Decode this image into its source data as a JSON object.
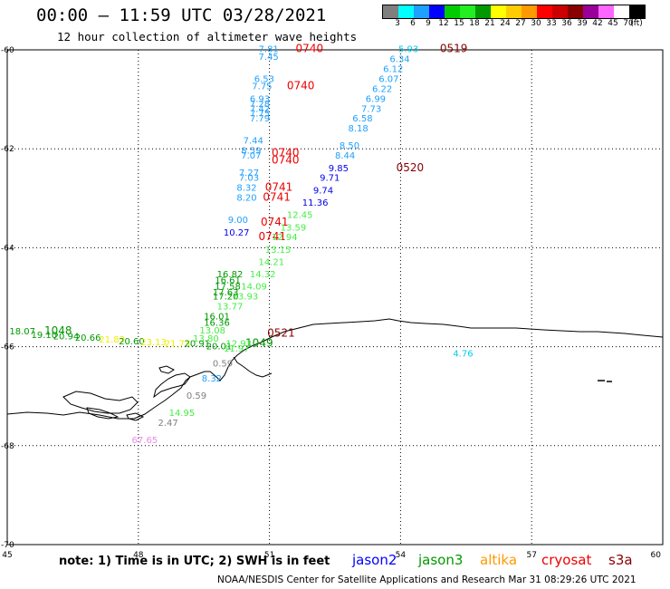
{
  "header": {
    "title": "00:00 – 11:59 UTC 03/28/2021",
    "subtitle": "12 hour collection of altimeter wave heights"
  },
  "colorbar": {
    "colors": [
      "#7f7f7f",
      "#00ffff",
      "#1ea0ff",
      "#0000ff",
      "#00cc00",
      "#22ee22",
      "#009900",
      "#ffff00",
      "#ffcc00",
      "#ff9900",
      "#ff0000",
      "#cc0000",
      "#880000",
      "#990099",
      "#ff66ff",
      "#ffffff",
      "#000000"
    ],
    "labels": [
      "3",
      "6",
      "9",
      "12",
      "15",
      "18",
      "21",
      "24",
      "27",
      "30",
      "33",
      "36",
      "39",
      "42",
      "45",
      "70",
      "(ft)"
    ]
  },
  "axes": {
    "lon_ticks": [
      "45",
      "48",
      "51",
      "54",
      "57",
      "60"
    ],
    "lat_ticks": [
      "-60",
      "-62",
      "-64",
      "-66",
      "-68",
      "-70"
    ]
  },
  "times": [
    {
      "text": "0740",
      "color": "#ee0000",
      "lon": 51.6,
      "lat": -60.05
    },
    {
      "text": "0740",
      "color": "#ee0000",
      "lon": 51.4,
      "lat": -60.8
    },
    {
      "text": "0519",
      "color": "#880000",
      "lon": 54.9,
      "lat": -60.05
    },
    {
      "text": "0740",
      "color": "#ee0000",
      "lon": 51.05,
      "lat": -62.15
    },
    {
      "text": "0740",
      "color": "#ee0000",
      "lon": 51.05,
      "lat": -62.3
    },
    {
      "text": "0520",
      "color": "#880000",
      "lon": 53.9,
      "lat": -62.45
    },
    {
      "text": "0741",
      "color": "#ee0000",
      "lon": 50.9,
      "lat": -62.85
    },
    {
      "text": "0741",
      "color": "#ee0000",
      "lon": 50.85,
      "lat": -63.05
    },
    {
      "text": "0741",
      "color": "#ee0000",
      "lon": 50.8,
      "lat": -63.55
    },
    {
      "text": "0741",
      "color": "#ee0000",
      "lon": 50.75,
      "lat": -63.85
    },
    {
      "text": "1048",
      "color": "#009900",
      "lon": 45.85,
      "lat": -65.75
    },
    {
      "text": "0521",
      "color": "#880000",
      "lon": 50.95,
      "lat": -65.8
    },
    {
      "text": "1049",
      "color": "#009900",
      "lon": 50.45,
      "lat": -66.0
    }
  ],
  "heights": [
    {
      "text": "7.81",
      "color": "#1ea0ff",
      "lon": 50.75,
      "lat": -60.05
    },
    {
      "text": "7.45",
      "color": "#1ea0ff",
      "lon": 50.75,
      "lat": -60.2
    },
    {
      "text": "5.93",
      "color": "#00ccee",
      "lon": 53.95,
      "lat": -60.05
    },
    {
      "text": "6.34",
      "color": "#1ea0ff",
      "lon": 53.75,
      "lat": -60.25
    },
    {
      "text": "6.12",
      "color": "#1ea0ff",
      "lon": 53.6,
      "lat": -60.45
    },
    {
      "text": "6.07",
      "color": "#1ea0ff",
      "lon": 53.5,
      "lat": -60.65
    },
    {
      "text": "6.53",
      "color": "#1ea0ff",
      "lon": 50.65,
      "lat": -60.65
    },
    {
      "text": "7.75",
      "color": "#1ea0ff",
      "lon": 50.6,
      "lat": -60.8
    },
    {
      "text": "6.22",
      "color": "#1ea0ff",
      "lon": 53.35,
      "lat": -60.85
    },
    {
      "text": "6.99",
      "color": "#1ea0ff",
      "lon": 53.2,
      "lat": -61.05
    },
    {
      "text": "6.93",
      "color": "#1ea0ff",
      "lon": 50.55,
      "lat": -61.05
    },
    {
      "text": "7.28",
      "color": "#1ea0ff",
      "lon": 50.55,
      "lat": -61.15
    },
    {
      "text": "7.42",
      "color": "#1ea0ff",
      "lon": 50.55,
      "lat": -61.25
    },
    {
      "text": "7.75",
      "color": "#1ea0ff",
      "lon": 50.55,
      "lat": -61.35
    },
    {
      "text": "7.73",
      "color": "#1ea0ff",
      "lon": 53.1,
      "lat": -61.25
    },
    {
      "text": "7.79",
      "color": "#1ea0ff",
      "lon": 50.55,
      "lat": -61.45
    },
    {
      "text": "6.58",
      "color": "#1ea0ff",
      "lon": 52.9,
      "lat": -61.45
    },
    {
      "text": "8.18",
      "color": "#1ea0ff",
      "lon": 52.8,
      "lat": -61.65
    },
    {
      "text": "7.44",
      "color": "#1ea0ff",
      "lon": 50.4,
      "lat": -61.9
    },
    {
      "text": "8.50",
      "color": "#1ea0ff",
      "lon": 52.6,
      "lat": -62.0
    },
    {
      "text": "8.59",
      "color": "#1ea0ff",
      "lon": 50.35,
      "lat": -62.1
    },
    {
      "text": "7.07",
      "color": "#1ea0ff",
      "lon": 50.35,
      "lat": -62.2
    },
    {
      "text": "8.44",
      "color": "#1ea0ff",
      "lon": 52.5,
      "lat": -62.2
    },
    {
      "text": "9.85",
      "color": "#0000ee",
      "lon": 52.35,
      "lat": -62.45
    },
    {
      "text": "7.27",
      "color": "#1ea0ff",
      "lon": 50.3,
      "lat": -62.55
    },
    {
      "text": "7.03",
      "color": "#1ea0ff",
      "lon": 50.3,
      "lat": -62.65
    },
    {
      "text": "9.71",
      "color": "#0000ee",
      "lon": 52.15,
      "lat": -62.65
    },
    {
      "text": "8.32",
      "color": "#1ea0ff",
      "lon": 50.25,
      "lat": -62.85
    },
    {
      "text": "9.74",
      "color": "#0000ee",
      "lon": 52.0,
      "lat": -62.9
    },
    {
      "text": "8.20",
      "color": "#1ea0ff",
      "lon": 50.25,
      "lat": -63.05
    },
    {
      "text": "11.36",
      "color": "#0000ee",
      "lon": 51.75,
      "lat": -63.15
    },
    {
      "text": "12.45",
      "color": "#44ee44",
      "lon": 51.4,
      "lat": -63.4
    },
    {
      "text": "9.00",
      "color": "#1ea0ff",
      "lon": 50.05,
      "lat": -63.5
    },
    {
      "text": "13.59",
      "color": "#44ee44",
      "lon": 51.25,
      "lat": -63.65
    },
    {
      "text": "10.27",
      "color": "#0000ee",
      "lon": 49.95,
      "lat": -63.75
    },
    {
      "text": "12.94",
      "color": "#44ee44",
      "lon": 51.05,
      "lat": -63.85
    },
    {
      "text": "13.15",
      "color": "#44ee44",
      "lon": 50.9,
      "lat": -64.1
    },
    {
      "text": "14.21",
      "color": "#44ee44",
      "lon": 50.75,
      "lat": -64.35
    },
    {
      "text": "14.32",
      "color": "#44ee44",
      "lon": 50.55,
      "lat": -64.6
    },
    {
      "text": "16.82",
      "color": "#009900",
      "lon": 49.8,
      "lat": -64.6
    },
    {
      "text": "16.61",
      "color": "#009900",
      "lon": 49.75,
      "lat": -64.72
    },
    {
      "text": "17.58",
      "color": "#009900",
      "lon": 49.75,
      "lat": -64.84
    },
    {
      "text": "14.09",
      "color": "#44ee44",
      "lon": 50.35,
      "lat": -64.84
    },
    {
      "text": "17.63",
      "color": "#009900",
      "lon": 49.7,
      "lat": -64.96
    },
    {
      "text": "17.20",
      "color": "#009900",
      "lon": 49.7,
      "lat": -65.05
    },
    {
      "text": "13.93",
      "color": "#44ee44",
      "lon": 50.15,
      "lat": -65.05
    },
    {
      "text": "13.77",
      "color": "#44ee44",
      "lon": 49.8,
      "lat": -65.25
    },
    {
      "text": "16.01",
      "color": "#009900",
      "lon": 49.5,
      "lat": -65.45
    },
    {
      "text": "16.36",
      "color": "#009900",
      "lon": 49.5,
      "lat": -65.58
    },
    {
      "text": "13.08",
      "color": "#44ee44",
      "lon": 49.4,
      "lat": -65.73
    },
    {
      "text": "13.80",
      "color": "#44ee44",
      "lon": 49.25,
      "lat": -65.9
    },
    {
      "text": "18.07",
      "color": "#009900",
      "lon": 45.05,
      "lat": -65.75
    },
    {
      "text": "19.10",
      "color": "#009900",
      "lon": 45.55,
      "lat": -65.82
    },
    {
      "text": "20.94",
      "color": "#009900",
      "lon": 46.05,
      "lat": -65.85
    },
    {
      "text": "20.66",
      "color": "#009900",
      "lon": 46.55,
      "lat": -65.88
    },
    {
      "text": "21.83",
      "color": "#eeee00",
      "lon": 47.1,
      "lat": -65.92
    },
    {
      "text": "20.60",
      "color": "#009900",
      "lon": 47.55,
      "lat": -65.95
    },
    {
      "text": "23.13",
      "color": "#eeee00",
      "lon": 48.05,
      "lat": -65.97
    },
    {
      "text": "21.73",
      "color": "#eeee00",
      "lon": 48.6,
      "lat": -66.0
    },
    {
      "text": "20.91",
      "color": "#009900",
      "lon": 49.05,
      "lat": -66.0
    },
    {
      "text": "20.01",
      "color": "#009900",
      "lon": 49.55,
      "lat": -66.05
    },
    {
      "text": "11.97",
      "color": "#44ee44",
      "lon": 49.95,
      "lat": -66.1
    },
    {
      "text": "12.93",
      "color": "#44ee44",
      "lon": 50.0,
      "lat": -66.0
    },
    {
      "text": "0.59",
      "color": "#7f7f7f",
      "lon": 49.7,
      "lat": -66.4
    },
    {
      "text": "8.32",
      "color": "#1ea0ff",
      "lon": 49.45,
      "lat": -66.7
    },
    {
      "text": "0.59",
      "color": "#7f7f7f",
      "lon": 49.1,
      "lat": -67.05
    },
    {
      "text": "14.95",
      "color": "#44ee44",
      "lon": 48.7,
      "lat": -67.4
    },
    {
      "text": "2.47",
      "color": "#7f7f7f",
      "lon": 48.45,
      "lat": -67.6
    },
    {
      "text": "67.65",
      "color": "#ee88ee",
      "lon": 47.85,
      "lat": -67.95
    },
    {
      "text": "4.76",
      "color": "#00ccee",
      "lon": 55.2,
      "lat": -66.2
    }
  ],
  "footer": {
    "note": "note:  1) Time is in UTC;  2) SWH is in feet",
    "satellites": [
      {
        "name": "jason2",
        "color": "#0000ff"
      },
      {
        "name": "jason3",
        "color": "#009900"
      },
      {
        "name": "altika",
        "color": "#ff9900"
      },
      {
        "name": "cryosat",
        "color": "#ee0000"
      },
      {
        "name": "s3a",
        "color": "#880000"
      }
    ],
    "credit": "NOAA/NESDIS Center for Satellite Applications and Research    Mar 31 08:29:26 UTC 2021"
  }
}
